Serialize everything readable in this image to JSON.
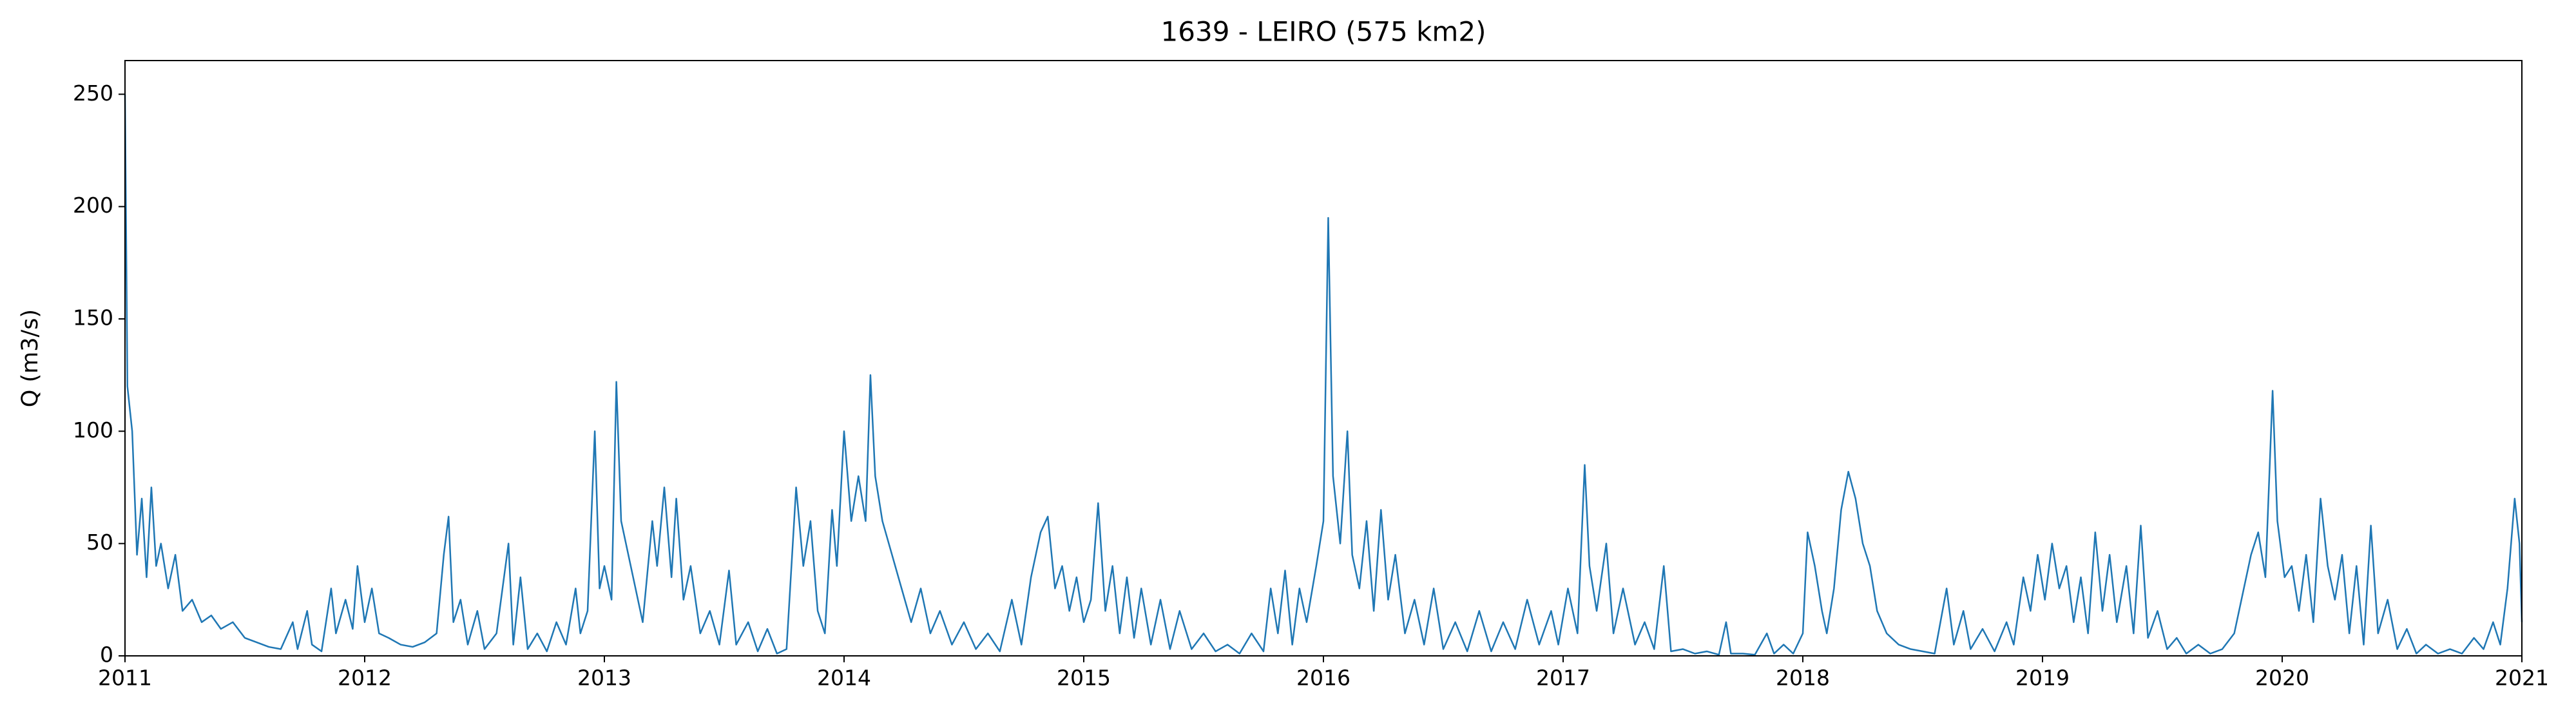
{
  "chart_data": {
    "type": "line",
    "title": "1639 - LEIRO (575 km2)",
    "y_label": "Q (m3/s)",
    "color": "#1f77b4",
    "xlim": [
      2011,
      2021
    ],
    "xticks": [
      2011,
      2012,
      2013,
      2014,
      2015,
      2016,
      2017,
      2018,
      2019,
      2020,
      2021
    ],
    "ylim": [
      0,
      265
    ],
    "yticks": [
      0,
      50,
      100,
      150,
      200,
      250
    ],
    "grid": false,
    "x": [
      2011.0,
      2011.01,
      2011.03,
      2011.05,
      2011.07,
      2011.09,
      2011.11,
      2011.13,
      2011.15,
      2011.18,
      2011.21,
      2011.24,
      2011.28,
      2011.32,
      2011.36,
      2011.4,
      2011.45,
      2011.5,
      2011.55,
      2011.6,
      2011.65,
      2011.7,
      2011.72,
      2011.76,
      2011.78,
      2011.82,
      2011.86,
      2011.88,
      2011.92,
      2011.95,
      2011.97,
      2012.0,
      2012.03,
      2012.06,
      2012.1,
      2012.15,
      2012.2,
      2012.25,
      2012.3,
      2012.33,
      2012.35,
      2012.37,
      2012.4,
      2012.43,
      2012.47,
      2012.5,
      2012.55,
      2012.6,
      2012.62,
      2012.65,
      2012.68,
      2012.72,
      2012.76,
      2012.8,
      2012.84,
      2012.88,
      2012.9,
      2012.93,
      2012.96,
      2012.98,
      2013.0,
      2013.03,
      2013.05,
      2013.07,
      2013.1,
      2013.13,
      2013.16,
      2013.2,
      2013.22,
      2013.25,
      2013.28,
      2013.3,
      2013.33,
      2013.36,
      2013.4,
      2013.44,
      2013.48,
      2013.52,
      2013.55,
      2013.6,
      2013.64,
      2013.68,
      2013.72,
      2013.76,
      2013.8,
      2013.83,
      2013.86,
      2013.89,
      2013.92,
      2013.95,
      2013.97,
      2014.0,
      2014.03,
      2014.06,
      2014.09,
      2014.11,
      2014.13,
      2014.16,
      2014.2,
      2014.24,
      2014.28,
      2014.32,
      2014.36,
      2014.4,
      2014.45,
      2014.5,
      2014.55,
      2014.6,
      2014.65,
      2014.7,
      2014.74,
      2014.78,
      2014.82,
      2014.85,
      2014.88,
      2014.91,
      2014.94,
      2014.97,
      2015.0,
      2015.03,
      2015.06,
      2015.09,
      2015.12,
      2015.15,
      2015.18,
      2015.21,
      2015.24,
      2015.28,
      2015.32,
      2015.36,
      2015.4,
      2015.45,
      2015.5,
      2015.55,
      2015.6,
      2015.65,
      2015.7,
      2015.75,
      2015.78,
      2015.81,
      2015.84,
      2015.87,
      2015.9,
      2015.93,
      2015.97,
      2016.0,
      2016.02,
      2016.04,
      2016.07,
      2016.1,
      2016.12,
      2016.15,
      2016.18,
      2016.21,
      2016.24,
      2016.27,
      2016.3,
      2016.34,
      2016.38,
      2016.42,
      2016.46,
      2016.5,
      2016.55,
      2016.6,
      2016.65,
      2016.7,
      2016.75,
      2016.8,
      2016.85,
      2016.9,
      2016.95,
      2016.98,
      2017.02,
      2017.06,
      2017.09,
      2017.11,
      2017.14,
      2017.18,
      2017.21,
      2017.25,
      2017.3,
      2017.34,
      2017.38,
      2017.42,
      2017.45,
      2017.5,
      2017.55,
      2017.6,
      2017.65,
      2017.68,
      2017.7,
      2017.75,
      2017.8,
      2017.85,
      2017.88,
      2017.92,
      2017.96,
      2018.0,
      2018.02,
      2018.05,
      2018.08,
      2018.1,
      2018.13,
      2018.16,
      2018.19,
      2018.22,
      2018.25,
      2018.28,
      2018.31,
      2018.35,
      2018.4,
      2018.45,
      2018.5,
      2018.55,
      2018.6,
      2018.63,
      2018.67,
      2018.7,
      2018.75,
      2018.8,
      2018.85,
      2018.88,
      2018.92,
      2018.95,
      2018.98,
      2019.01,
      2019.04,
      2019.07,
      2019.1,
      2019.13,
      2019.16,
      2019.19,
      2019.22,
      2019.25,
      2019.28,
      2019.31,
      2019.35,
      2019.38,
      2019.41,
      2019.44,
      2019.48,
      2019.52,
      2019.56,
      2019.6,
      2019.65,
      2019.7,
      2019.75,
      2019.8,
      2019.84,
      2019.87,
      2019.9,
      2019.93,
      2019.96,
      2019.98,
      2020.01,
      2020.04,
      2020.07,
      2020.1,
      2020.13,
      2020.16,
      2020.19,
      2020.22,
      2020.25,
      2020.28,
      2020.31,
      2020.34,
      2020.37,
      2020.4,
      2020.44,
      2020.48,
      2020.52,
      2020.56,
      2020.6,
      2020.65,
      2020.7,
      2020.75,
      2020.8,
      2020.84,
      2020.88,
      2020.91,
      2020.94,
      2020.97,
      2020.99,
      2021.0
    ],
    "values": [
      250,
      120,
      100,
      45,
      70,
      35,
      75,
      40,
      50,
      30,
      45,
      20,
      25,
      15,
      18,
      12,
      15,
      8,
      6,
      4,
      3,
      15,
      3,
      20,
      5,
      2,
      30,
      10,
      25,
      12,
      40,
      15,
      30,
      10,
      8,
      5,
      4,
      6,
      10,
      45,
      62,
      15,
      25,
      5,
      20,
      3,
      10,
      50,
      5,
      35,
      3,
      10,
      2,
      15,
      5,
      30,
      10,
      20,
      100,
      30,
      40,
      25,
      122,
      60,
      45,
      30,
      15,
      60,
      40,
      75,
      35,
      70,
      25,
      40,
      10,
      20,
      5,
      38,
      5,
      15,
      2,
      12,
      1,
      3,
      75,
      40,
      60,
      20,
      10,
      65,
      40,
      100,
      60,
      80,
      60,
      125,
      80,
      60,
      45,
      30,
      15,
      30,
      10,
      20,
      5,
      15,
      3,
      10,
      2,
      25,
      5,
      35,
      55,
      62,
      30,
      40,
      20,
      35,
      15,
      25,
      68,
      20,
      40,
      10,
      35,
      8,
      30,
      5,
      25,
      3,
      20,
      3,
      10,
      2,
      5,
      1,
      10,
      2,
      30,
      10,
      38,
      5,
      30,
      15,
      40,
      60,
      195,
      80,
      50,
      100,
      45,
      30,
      60,
      20,
      65,
      25,
      45,
      10,
      25,
      5,
      30,
      3,
      15,
      2,
      20,
      2,
      15,
      3,
      25,
      5,
      20,
      5,
      30,
      10,
      85,
      40,
      20,
      50,
      10,
      30,
      5,
      15,
      3,
      40,
      2,
      3,
      1,
      2,
      0.5,
      15,
      1,
      1,
      0.5,
      10,
      1,
      5,
      1,
      10,
      55,
      40,
      20,
      10,
      30,
      65,
      82,
      70,
      50,
      40,
      20,
      10,
      5,
      3,
      2,
      1,
      30,
      5,
      20,
      3,
      12,
      2,
      15,
      5,
      35,
      20,
      45,
      25,
      50,
      30,
      40,
      15,
      35,
      10,
      55,
      20,
      45,
      15,
      40,
      10,
      58,
      8,
      20,
      3,
      8,
      1,
      5,
      1,
      3,
      10,
      30,
      45,
      55,
      35,
      118,
      60,
      35,
      40,
      20,
      45,
      15,
      70,
      40,
      25,
      45,
      10,
      40,
      5,
      58,
      10,
      25,
      3,
      12,
      1,
      5,
      1,
      3,
      1,
      8,
      3,
      15,
      5,
      30,
      70,
      50,
      15
    ]
  }
}
